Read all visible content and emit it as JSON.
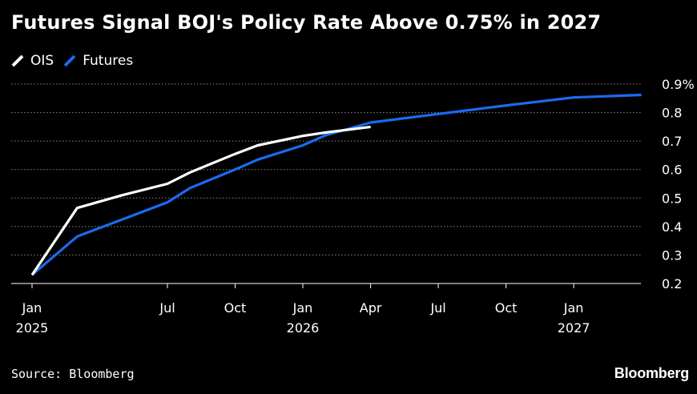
{
  "title": "Futures Signal BOJ's Policy Rate Above 0.75% in 2027",
  "source": "Source: Bloomberg",
  "brand": "Bloomberg",
  "legend": [
    {
      "label": "OIS",
      "color": "#ffffff"
    },
    {
      "label": "Futures",
      "color": "#1a6bf0"
    }
  ],
  "chart_data": {
    "type": "line",
    "title": "Futures Signal BOJ's Policy Rate Above 0.75% in 2027",
    "xlabel": "",
    "ylabel": "",
    "ylim": [
      0.2,
      0.9
    ],
    "y_unit_suffix": "%",
    "y_ticks": [
      0.2,
      0.3,
      0.4,
      0.5,
      0.6,
      0.7,
      0.8,
      0.9
    ],
    "y_tick_labels": [
      "0.2",
      "0.3",
      "0.4",
      "0.5",
      "0.6",
      "0.7",
      "0.8",
      "0.9%"
    ],
    "x_ticks": [
      {
        "date": "2025-01",
        "label": "Jan",
        "sublabel": "2025"
      },
      {
        "date": "2025-07",
        "label": "Jul",
        "sublabel": ""
      },
      {
        "date": "2025-10",
        "label": "Oct",
        "sublabel": ""
      },
      {
        "date": "2026-01",
        "label": "Jan",
        "sublabel": "2026"
      },
      {
        "date": "2026-04",
        "label": "Apr",
        "sublabel": ""
      },
      {
        "date": "2026-07",
        "label": "Jul",
        "sublabel": ""
      },
      {
        "date": "2026-10",
        "label": "Oct",
        "sublabel": ""
      },
      {
        "date": "2027-01",
        "label": "Jan",
        "sublabel": "2027"
      }
    ],
    "grid": true,
    "legend_position": "top-left",
    "series": [
      {
        "name": "OIS",
        "color": "#ffffff",
        "points": [
          {
            "x": "2025-01",
            "y": 0.23
          },
          {
            "x": "2025-03",
            "y": 0.465
          },
          {
            "x": "2025-05",
            "y": 0.51
          },
          {
            "x": "2025-07",
            "y": 0.55
          },
          {
            "x": "2025-08",
            "y": 0.59
          },
          {
            "x": "2025-10",
            "y": 0.655
          },
          {
            "x": "2025-11",
            "y": 0.685
          },
          {
            "x": "2026-01",
            "y": 0.718
          },
          {
            "x": "2026-02",
            "y": 0.73
          },
          {
            "x": "2026-04",
            "y": 0.75
          }
        ]
      },
      {
        "name": "Futures",
        "color": "#1a6bf0",
        "points": [
          {
            "x": "2025-01",
            "y": 0.23
          },
          {
            "x": "2025-03",
            "y": 0.365
          },
          {
            "x": "2025-05",
            "y": 0.425
          },
          {
            "x": "2025-07",
            "y": 0.485
          },
          {
            "x": "2025-08",
            "y": 0.535
          },
          {
            "x": "2025-10",
            "y": 0.6
          },
          {
            "x": "2025-11",
            "y": 0.635
          },
          {
            "x": "2026-01",
            "y": 0.685
          },
          {
            "x": "2026-02",
            "y": 0.72
          },
          {
            "x": "2026-04",
            "y": 0.765
          },
          {
            "x": "2026-07",
            "y": 0.795
          },
          {
            "x": "2026-10",
            "y": 0.825
          },
          {
            "x": "2027-01",
            "y": 0.853
          },
          {
            "x": "2027-04",
            "y": 0.862
          }
        ]
      }
    ]
  }
}
